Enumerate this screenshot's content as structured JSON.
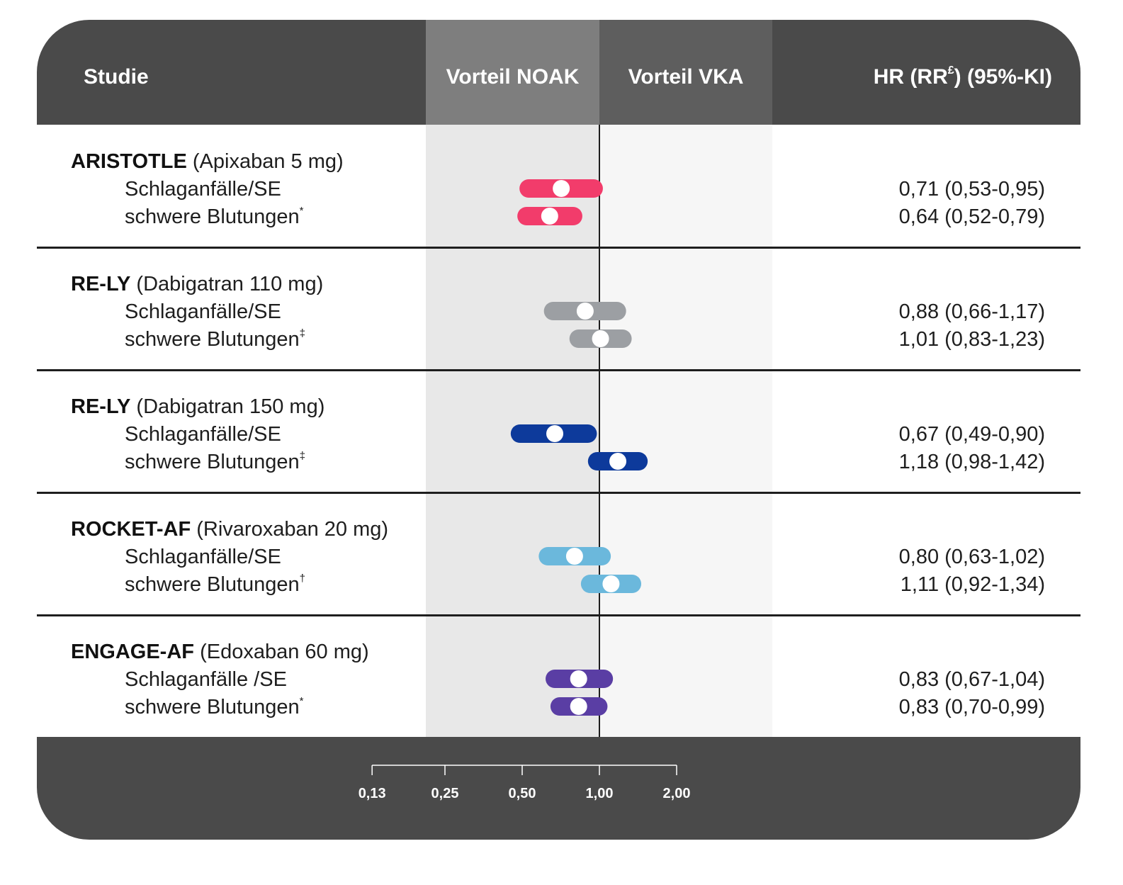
{
  "header": {
    "studie": "Studie",
    "vorteil_noak": "Vorteil NOAK",
    "vorteil_vka": "Vorteil VKA",
    "hr_prefix": "HR (RR",
    "hr_sup": "£",
    "hr_suffix": ") (95%-KI)"
  },
  "colors": {
    "header_bg": "#4a4a4a",
    "noak_header": "#7e7e7e",
    "vka_header": "#5e5e5e",
    "aristotle": "#f23c6b",
    "rely110": "#9c9fa3",
    "rely150": "#0d3a9b",
    "rocket": "#6bb8dc",
    "engage": "#5a3ea4"
  },
  "studies": [
    {
      "name": "ARISTOTLE",
      "drug": "(Apixaban 5 mg)",
      "rows": [
        {
          "label": "Schlaganfälle/SE",
          "sup": "",
          "value": "0,71 (0,53-0,95)"
        },
        {
          "label": "schwere Blutungen",
          "sup": "*",
          "value": "0,64 (0,52-0,79)"
        }
      ]
    },
    {
      "name": "RE-LY",
      "drug": "(Dabigatran 110 mg)",
      "rows": [
        {
          "label": "Schlaganfälle/SE",
          "sup": "",
          "value": "0,88 (0,66-1,17)"
        },
        {
          "label": "schwere Blutungen",
          "sup": "‡",
          "value": "1,01 (0,83-1,23)"
        }
      ]
    },
    {
      "name": "RE-LY",
      "drug": "(Dabigatran 150 mg)",
      "rows": [
        {
          "label": "Schlaganfälle/SE",
          "sup": "",
          "value": "0,67 (0,49-0,90)"
        },
        {
          "label": "schwere Blutungen",
          "sup": "‡",
          "value": "1,18 (0,98-1,42)"
        }
      ]
    },
    {
      "name": "ROCKET-AF",
      "drug": "(Rivaroxaban 20 mg)",
      "rows": [
        {
          "label": "Schlaganfälle/SE",
          "sup": "",
          "value": "0,80 (0,63-1,02)"
        },
        {
          "label": "schwere Blutungen",
          "sup": "†",
          "value": "1,11 (0,92-1,34)"
        }
      ]
    },
    {
      "name": "ENGAGE-AF",
      "drug": "(Edoxaban 60 mg)",
      "rows": [
        {
          "label": "Schlaganfälle /SE",
          "sup": "",
          "value": "0,83 (0,67-1,04)"
        },
        {
          "label": "schwere Blutungen",
          "sup": "*",
          "value": "0,83 (0,70-0,99)"
        }
      ]
    }
  ],
  "chart_data": {
    "type": "forest",
    "scale": "log2",
    "reference": 1.0,
    "xticks": [
      0.13,
      0.25,
      0.5,
      1.0,
      2.0
    ],
    "xtick_labels": [
      "0,13",
      "0,25",
      "0,50",
      "1,00",
      "2,00"
    ],
    "series": [
      {
        "study": "ARISTOTLE (Apixaban 5 mg)",
        "outcome": "Schlaganfälle/SE",
        "hr": 0.71,
        "lo": 0.53,
        "hi": 0.95,
        "color": "#f23c6b"
      },
      {
        "study": "ARISTOTLE (Apixaban 5 mg)",
        "outcome": "schwere Blutungen",
        "hr": 0.64,
        "lo": 0.52,
        "hi": 0.79,
        "color": "#f23c6b"
      },
      {
        "study": "RE-LY (Dabigatran 110 mg)",
        "outcome": "Schlaganfälle/SE",
        "hr": 0.88,
        "lo": 0.66,
        "hi": 1.17,
        "color": "#9c9fa3"
      },
      {
        "study": "RE-LY (Dabigatran 110 mg)",
        "outcome": "schwere Blutungen",
        "hr": 1.01,
        "lo": 0.83,
        "hi": 1.23,
        "color": "#9c9fa3"
      },
      {
        "study": "RE-LY (Dabigatran 150 mg)",
        "outcome": "Schlaganfälle/SE",
        "hr": 0.67,
        "lo": 0.49,
        "hi": 0.9,
        "color": "#0d3a9b"
      },
      {
        "study": "RE-LY (Dabigatran 150 mg)",
        "outcome": "schwere Blutungen",
        "hr": 1.18,
        "lo": 0.98,
        "hi": 1.42,
        "color": "#0d3a9b"
      },
      {
        "study": "ROCKET-AF (Rivaroxaban 20 mg)",
        "outcome": "Schlaganfälle/SE",
        "hr": 0.8,
        "lo": 0.63,
        "hi": 1.02,
        "color": "#6bb8dc"
      },
      {
        "study": "ROCKET-AF (Rivaroxaban 20 mg)",
        "outcome": "schwere Blutungen",
        "hr": 1.11,
        "lo": 0.92,
        "hi": 1.34,
        "color": "#6bb8dc"
      },
      {
        "study": "ENGAGE-AF (Edoxaban 60 mg)",
        "outcome": "Schlaganfälle /SE",
        "hr": 0.83,
        "lo": 0.67,
        "hi": 1.04,
        "color": "#5a3ea4"
      },
      {
        "study": "ENGAGE-AF (Edoxaban 60 mg)",
        "outcome": "schwere Blutungen",
        "hr": 0.83,
        "lo": 0.7,
        "hi": 0.99,
        "color": "#5a3ea4"
      }
    ]
  }
}
